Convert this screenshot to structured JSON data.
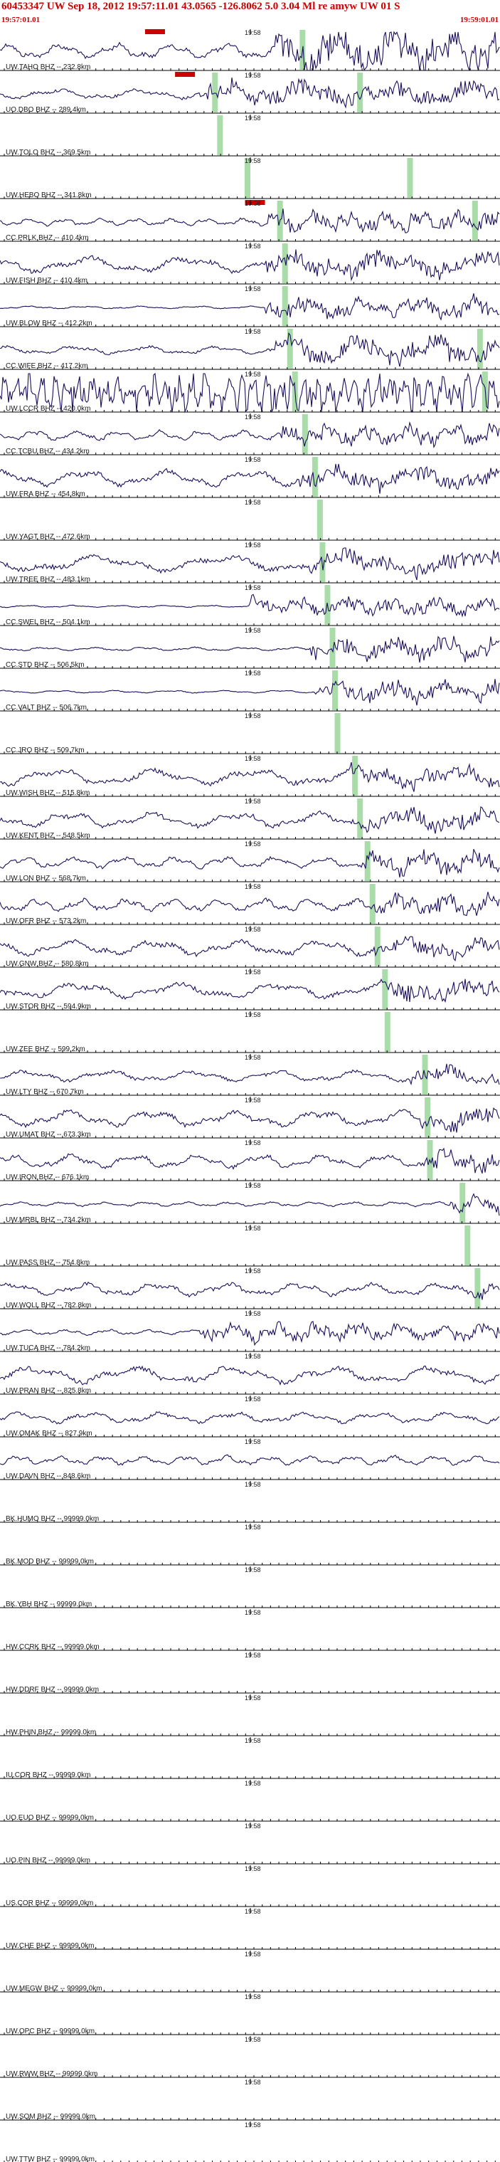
{
  "header": {
    "title": "60453347 UW Sep 18, 2012 19:57:11.01   43.0565 -126.8062  5.0 3.04 Ml re amyw UW 01  S",
    "start_time": "19:57:01.01",
    "end_time": "19:59:01.01"
  },
  "chart_data": {
    "type": "line",
    "title": "60453347 UW Sep 18, 2012 19:57:11.01   43.0565 -126.8062  5.0 3.04 Ml re amyw UW 01  S",
    "x_range": [
      "19:57:01.01",
      "19:59:01.01"
    ],
    "x_tick_label": "19:58",
    "grid": false,
    "colors": {
      "trace": "#1c0f5c",
      "pick": "#aadcaa",
      "marker": "#cc0000",
      "separator": "#000000"
    },
    "traces": [
      {
        "label": "UW.TAHO BHZ -- 232.8km",
        "amp": 0.85,
        "freq": 9,
        "onset": 0.55,
        "burst": 2.2,
        "pick": 0.605,
        "marker": 0.31
      },
      {
        "label": "UO.DBO BHZ -- 289.4km",
        "amp": 0.55,
        "freq": 6,
        "onset": 0.4,
        "burst": 1.8,
        "pick": 0.43,
        "pick2": 0.72,
        "marker": 0.37
      },
      {
        "label": "UW.TOLO BHZ -- 369.5km",
        "amp": 0,
        "freq": 0,
        "onset": 1.1,
        "burst": 0,
        "pick": 0.44
      },
      {
        "label": "UW.HEBO BHZ -- 341.8km",
        "amp": 0,
        "freq": 0,
        "onset": 1.1,
        "burst": 0,
        "pick": 0.495,
        "pick2": 0.82
      },
      {
        "label": "CC.PRLK BHZ -- 410.4km",
        "amp": 0.4,
        "freq": 14,
        "onset": 0.53,
        "burst": 2.2,
        "pick": 0.56,
        "pick2": 0.95,
        "marker": 0.51
      },
      {
        "label": "UW.FISH BHZ -- 410.4km",
        "amp": 0.85,
        "freq": 5,
        "onset": 0.53,
        "burst": 1.2,
        "pick": 0.57
      },
      {
        "label": "UW.BLOW BHZ -- 412.2km",
        "amp": 0.15,
        "freq": 9,
        "onset": 0.53,
        "burst": 6.0,
        "pick": 0.57
      },
      {
        "label": "CC.WIFE BHZ -- 417.2km",
        "amp": 0.45,
        "freq": 7,
        "onset": 0.55,
        "burst": 2.5,
        "pick": 0.58,
        "pick2": 0.96
      },
      {
        "label": "UW.LCCR BHZ -- 420.0km",
        "amp": 1.6,
        "freq": 40,
        "onset": 0.0,
        "burst": 1.0,
        "pick": 0.59,
        "pick2": 0.97
      },
      {
        "label": "CC.TCBU BHZ -- 434.2km",
        "amp": 0.55,
        "freq": 12,
        "onset": 0.56,
        "burst": 1.6,
        "pick": 0.61
      },
      {
        "label": "UW.FRA BHZ -- 454.8km",
        "amp": 0.9,
        "freq": 6,
        "onset": 0.6,
        "burst": 1.1,
        "pick": 0.63
      },
      {
        "label": "UW.YAGT BHZ -- 472.6km",
        "amp": 0,
        "freq": 0,
        "onset": 1.1,
        "burst": 0,
        "pick": 0.64
      },
      {
        "label": "UW.TREE BHZ -- 483.1km",
        "amp": 0.9,
        "freq": 4,
        "onset": 0.62,
        "burst": 1.1,
        "pick": 0.645
      },
      {
        "label": "CC.SWEL BHZ -- 504.1km",
        "amp": 0.12,
        "freq": 11,
        "onset": 0.5,
        "burst": 6.5,
        "pick": 0.655
      },
      {
        "label": "CC.STD BHZ -- 506.5km",
        "amp": 0.2,
        "freq": 10,
        "onset": 0.62,
        "burst": 5.0,
        "pick": 0.665
      },
      {
        "label": "CC.VALT BHZ -- 506.7km",
        "amp": 0.15,
        "freq": 9,
        "onset": 0.63,
        "burst": 6.0,
        "pick": 0.67
      },
      {
        "label": "CC.JRO BHZ -- 509.7km",
        "amp": 0,
        "freq": 0,
        "onset": 1.1,
        "burst": 0,
        "pick": 0.675
      },
      {
        "label": "UW.WISH BHZ -- 515.8km",
        "amp": 0.9,
        "freq": 5,
        "onset": 0.7,
        "burst": 1.1,
        "pick": 0.71
      },
      {
        "label": "UW.KENT BHZ -- 548.5km",
        "amp": 0.85,
        "freq": 6,
        "onset": 0.72,
        "burst": 1.1,
        "pick": 0.72
      },
      {
        "label": "UW.LON BHZ -- 568.7km",
        "amp": 0.6,
        "freq": 10,
        "onset": 0.72,
        "burst": 1.7,
        "pick": 0.735
      },
      {
        "label": "UW.OFR BHZ -- 573.2km",
        "amp": 0.7,
        "freq": 11,
        "onset": 0.74,
        "burst": 1.3,
        "pick": 0.745
      },
      {
        "label": "UW.GNW BHZ -- 580.8km",
        "amp": 0.85,
        "freq": 6,
        "onset": 0.75,
        "burst": 1.1,
        "pick": 0.755
      },
      {
        "label": "UW.STOR BHZ -- 594.9km",
        "amp": 0.85,
        "freq": 5,
        "onset": 0.76,
        "burst": 1.1,
        "pick": 0.77
      },
      {
        "label": "UW.ZEE BHZ -- 599.2km",
        "amp": 0,
        "freq": 0,
        "onset": 1.1,
        "burst": 0,
        "pick": 0.775
      },
      {
        "label": "UW.LTY BHZ -- 670.7km",
        "amp": 0.6,
        "freq": 6,
        "onset": 0.82,
        "burst": 1.5,
        "pick": 0.85
      },
      {
        "label": "UW.UMAT BHZ -- 673.3km",
        "amp": 0.9,
        "freq": 6,
        "onset": 0.84,
        "burst": 1.1,
        "pick": 0.855
      },
      {
        "label": "UW.IRON BHZ -- 676.1km",
        "amp": 0.75,
        "freq": 8,
        "onset": 0.85,
        "burst": 1.3,
        "pick": 0.86
      },
      {
        "label": "UW.MRBL BHZ -- 734.2km",
        "amp": 0.25,
        "freq": 12,
        "onset": 0.9,
        "burst": 3.0,
        "pick": 0.925
      },
      {
        "label": "UW.PASS BHZ -- 754.8km",
        "amp": 0,
        "freq": 0,
        "onset": 1.1,
        "burst": 0,
        "pick": 0.935
      },
      {
        "label": "UW.WOLL BHZ -- 782.8km",
        "amp": 0.7,
        "freq": 7,
        "onset": 0.94,
        "burst": 1.2,
        "pick": 0.955
      },
      {
        "label": "UW.TUCA BHZ -- 784.2km",
        "amp": 0.3,
        "freq": 12,
        "onset": 0.4,
        "burst": 2.5
      },
      {
        "label": "UW.PRAN BHZ -- 825.8km",
        "amp": 0.9,
        "freq": 5,
        "onset": 1.1,
        "burst": 1.0
      },
      {
        "label": "UW.OMAK BHZ -- 827.9km",
        "amp": 0.6,
        "freq": 7,
        "onset": 1.1,
        "burst": 1.0
      },
      {
        "label": "UW.DAVN BHZ -- 848.6km",
        "amp": 0.5,
        "freq": 12,
        "onset": 1.1,
        "burst": 1.0
      },
      {
        "label": "BK.HUMO BHZ -- 99999.0km",
        "amp": 0,
        "freq": 0,
        "onset": 1.1,
        "burst": 0
      },
      {
        "label": "BK.MOD BHZ -- 99999.0km",
        "amp": 0,
        "freq": 0,
        "onset": 1.1,
        "burst": 0
      },
      {
        "label": "BK.YBH BHZ -- 99999.0km",
        "amp": 0,
        "freq": 0,
        "onset": 1.1,
        "burst": 0
      },
      {
        "label": "HW.CCRK BHZ -- 99999.0km",
        "amp": 0,
        "freq": 0,
        "onset": 1.1,
        "burst": 0
      },
      {
        "label": "HW.DDRF BHZ -- 99999.0km",
        "amp": 0,
        "freq": 0,
        "onset": 1.1,
        "burst": 0
      },
      {
        "label": "HW.PHIN BHZ -- 99999.0km",
        "amp": 0,
        "freq": 0,
        "onset": 1.1,
        "burst": 0
      },
      {
        "label": "IU.COR BHZ -- 99999.0km",
        "amp": 0,
        "freq": 0,
        "onset": 1.1,
        "burst": 0
      },
      {
        "label": "UO.EUO BHZ -- 99999.0km",
        "amp": 0,
        "freq": 0,
        "onset": 1.1,
        "burst": 0
      },
      {
        "label": "UO.PIN BHZ -- 99999.0km",
        "amp": 0,
        "freq": 0,
        "onset": 1.1,
        "burst": 0
      },
      {
        "label": "US.COR BHZ -- 99999.0km",
        "amp": 0,
        "freq": 0,
        "onset": 1.1,
        "burst": 0
      },
      {
        "label": "UW.CHE BHZ -- 99999.0km",
        "amp": 0,
        "freq": 0,
        "onset": 1.1,
        "burst": 0
      },
      {
        "label": "UW.MEGW BHZ -- 99999.0km",
        "amp": 0,
        "freq": 0,
        "onset": 1.1,
        "burst": 0
      },
      {
        "label": "UW.OPC BHZ -- 99999.0km",
        "amp": 0,
        "freq": 0,
        "onset": 1.1,
        "burst": 0
      },
      {
        "label": "UW.RWW BHZ -- 99999.0km",
        "amp": 0,
        "freq": 0,
        "onset": 1.1,
        "burst": 0
      },
      {
        "label": "UW.SQM BHZ -- 99999.0km",
        "amp": 0,
        "freq": 0,
        "onset": 1.1,
        "burst": 0
      },
      {
        "label": "UW.TTW BHZ -- 99999.0km",
        "amp": 0,
        "freq": 0,
        "onset": 1.1,
        "burst": 0
      }
    ]
  }
}
